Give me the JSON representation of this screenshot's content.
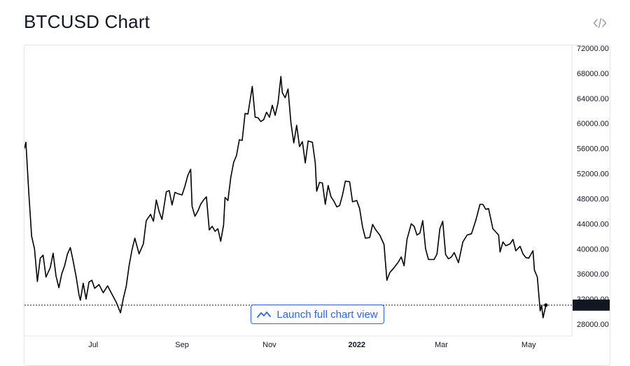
{
  "header": {
    "title": "BTCUSD Chart"
  },
  "toolbar": {
    "embed_icon": "code-embed-icon",
    "launch_label": "Launch full chart view",
    "launch_icon": "chart-line-icon"
  },
  "colors": {
    "line": "#000000",
    "accent": "#2962ff",
    "price_tag_bg": "#131722",
    "grid_border": "#e0e3eb"
  },
  "chart_data": {
    "type": "line",
    "title": "BTCUSD Chart",
    "symbol": "BTCUSD",
    "last_price": "31027.40",
    "y_ticks": [
      "72000.00",
      "68000.00",
      "64000.00",
      "60000.00",
      "56000.00",
      "52000.00",
      "48000.00",
      "44000.00",
      "40000.00",
      "36000.00",
      "32000.00",
      "28000.00"
    ],
    "ylim": [
      28000,
      72000
    ],
    "x_ticks": [
      {
        "label": "Jul",
        "x": "2021-07-01"
      },
      {
        "label": "Sep",
        "x": "2021-09-01"
      },
      {
        "label": "Nov",
        "x": "2021-11-01"
      },
      {
        "label": "2022",
        "x": "2022-01-01"
      },
      {
        "label": "Mar",
        "x": "2022-03-01"
      },
      {
        "label": "May",
        "x": "2022-05-01"
      }
    ],
    "xlim": [
      "2021-05-14",
      "2022-05-16"
    ],
    "grid": false,
    "series": [
      {
        "points": [
          [
            "2021-05-14",
            56000
          ],
          [
            "2021-05-15",
            57000
          ],
          [
            "2021-05-17",
            49000
          ],
          [
            "2021-05-19",
            42000
          ],
          [
            "2021-05-21",
            40000
          ],
          [
            "2021-05-23",
            34800
          ],
          [
            "2021-05-25",
            38500
          ],
          [
            "2021-05-27",
            39000
          ],
          [
            "2021-05-29",
            35500
          ],
          [
            "2021-06-01",
            37000
          ],
          [
            "2021-06-03",
            39300
          ],
          [
            "2021-06-05",
            35700
          ],
          [
            "2021-06-07",
            33800
          ],
          [
            "2021-06-09",
            36000
          ],
          [
            "2021-06-11",
            37300
          ],
          [
            "2021-06-13",
            39200
          ],
          [
            "2021-06-15",
            40200
          ],
          [
            "2021-06-17",
            38000
          ],
          [
            "2021-06-19",
            35600
          ],
          [
            "2021-06-21",
            32700
          ],
          [
            "2021-06-22",
            31800
          ],
          [
            "2021-06-24",
            34500
          ],
          [
            "2021-06-26",
            32000
          ],
          [
            "2021-06-28",
            34700
          ],
          [
            "2021-06-30",
            35000
          ],
          [
            "2021-07-02",
            33700
          ],
          [
            "2021-07-05",
            34300
          ],
          [
            "2021-07-08",
            33000
          ],
          [
            "2021-07-11",
            34100
          ],
          [
            "2021-07-14",
            32800
          ],
          [
            "2021-07-17",
            31500
          ],
          [
            "2021-07-20",
            29800
          ],
          [
            "2021-07-22",
            32100
          ],
          [
            "2021-07-24",
            34000
          ],
          [
            "2021-07-26",
            37300
          ],
          [
            "2021-07-28",
            39800
          ],
          [
            "2021-07-30",
            41700
          ],
          [
            "2021-08-02",
            39200
          ],
          [
            "2021-08-05",
            40800
          ],
          [
            "2021-08-07",
            44500
          ],
          [
            "2021-08-10",
            45500
          ],
          [
            "2021-08-12",
            44400
          ],
          [
            "2021-08-14",
            47800
          ],
          [
            "2021-08-16",
            45900
          ],
          [
            "2021-08-18",
            44700
          ],
          [
            "2021-08-21",
            49100
          ],
          [
            "2021-08-23",
            49300
          ],
          [
            "2021-08-25",
            47000
          ],
          [
            "2021-08-27",
            49000
          ],
          [
            "2021-08-29",
            48800
          ],
          [
            "2021-09-01",
            48600
          ],
          [
            "2021-09-03",
            50000
          ],
          [
            "2021-09-05",
            51700
          ],
          [
            "2021-09-07",
            52700
          ],
          [
            "2021-09-08",
            46800
          ],
          [
            "2021-09-10",
            45200
          ],
          [
            "2021-09-12",
            46000
          ],
          [
            "2021-09-14",
            47100
          ],
          [
            "2021-09-16",
            47800
          ],
          [
            "2021-09-18",
            48300
          ],
          [
            "2021-09-20",
            43000
          ],
          [
            "2021-09-22",
            43600
          ],
          [
            "2021-09-24",
            42800
          ],
          [
            "2021-09-26",
            43200
          ],
          [
            "2021-09-28",
            41200
          ],
          [
            "2021-09-30",
            43800
          ],
          [
            "2021-10-01",
            48200
          ],
          [
            "2021-10-03",
            47700
          ],
          [
            "2021-10-05",
            51400
          ],
          [
            "2021-10-07",
            53800
          ],
          [
            "2021-10-09",
            54900
          ],
          [
            "2021-10-11",
            57400
          ],
          [
            "2021-10-13",
            57300
          ],
          [
            "2021-10-15",
            61600
          ],
          [
            "2021-10-17",
            61500
          ],
          [
            "2021-10-20",
            65900
          ],
          [
            "2021-10-22",
            61000
          ],
          [
            "2021-10-24",
            60900
          ],
          [
            "2021-10-26",
            60300
          ],
          [
            "2021-10-28",
            60600
          ],
          [
            "2021-10-30",
            61800
          ],
          [
            "2021-11-01",
            61000
          ],
          [
            "2021-11-03",
            62900
          ],
          [
            "2021-11-05",
            61300
          ],
          [
            "2021-11-07",
            63300
          ],
          [
            "2021-11-09",
            67500
          ],
          [
            "2021-11-10",
            64900
          ],
          [
            "2021-11-12",
            64100
          ],
          [
            "2021-11-14",
            65500
          ],
          [
            "2021-11-16",
            60100
          ],
          [
            "2021-11-18",
            56900
          ],
          [
            "2021-11-20",
            59700
          ],
          [
            "2021-11-22",
            56300
          ],
          [
            "2021-11-24",
            57100
          ],
          [
            "2021-11-26",
            53700
          ],
          [
            "2021-11-28",
            57200
          ],
          [
            "2021-12-01",
            57000
          ],
          [
            "2021-12-03",
            53700
          ],
          [
            "2021-12-04",
            49200
          ],
          [
            "2021-12-06",
            50600
          ],
          [
            "2021-12-08",
            50500
          ],
          [
            "2021-12-10",
            47100
          ],
          [
            "2021-12-12",
            50100
          ],
          [
            "2021-12-14",
            48300
          ],
          [
            "2021-12-16",
            47600
          ],
          [
            "2021-12-18",
            46700
          ],
          [
            "2021-12-20",
            46900
          ],
          [
            "2021-12-22",
            48600
          ],
          [
            "2021-12-24",
            50800
          ],
          [
            "2021-12-27",
            50700
          ],
          [
            "2021-12-29",
            47500
          ],
          [
            "2022-01-01",
            47700
          ],
          [
            "2022-01-03",
            46400
          ],
          [
            "2022-01-05",
            43500
          ],
          [
            "2022-01-07",
            41700
          ],
          [
            "2022-01-10",
            41800
          ],
          [
            "2022-01-12",
            43900
          ],
          [
            "2022-01-14",
            43100
          ],
          [
            "2022-01-17",
            42200
          ],
          [
            "2022-01-20",
            40700
          ],
          [
            "2022-01-22",
            35000
          ],
          [
            "2022-01-24",
            36200
          ],
          [
            "2022-01-27",
            37000
          ],
          [
            "2022-01-30",
            37900
          ],
          [
            "2022-02-01",
            38700
          ],
          [
            "2022-02-03",
            37300
          ],
          [
            "2022-02-05",
            41500
          ],
          [
            "2022-02-08",
            44000
          ],
          [
            "2022-02-10",
            43600
          ],
          [
            "2022-02-12",
            42200
          ],
          [
            "2022-02-14",
            42500
          ],
          [
            "2022-02-16",
            44500
          ],
          [
            "2022-02-18",
            40000
          ],
          [
            "2022-02-20",
            38300
          ],
          [
            "2022-02-22",
            38300
          ],
          [
            "2022-02-24",
            38300
          ],
          [
            "2022-02-26",
            39200
          ],
          [
            "2022-02-28",
            43200
          ],
          [
            "2022-03-02",
            44400
          ],
          [
            "2022-03-04",
            39100
          ],
          [
            "2022-03-06",
            38400
          ],
          [
            "2022-03-08",
            38700
          ],
          [
            "2022-03-10",
            39400
          ],
          [
            "2022-03-13",
            37800
          ],
          [
            "2022-03-16",
            41100
          ],
          [
            "2022-03-19",
            42200
          ],
          [
            "2022-03-22",
            42400
          ],
          [
            "2022-03-25",
            44500
          ],
          [
            "2022-03-28",
            47100
          ],
          [
            "2022-03-30",
            47100
          ],
          [
            "2022-04-01",
            46300
          ],
          [
            "2022-04-03",
            46400
          ],
          [
            "2022-04-06",
            43200
          ],
          [
            "2022-04-08",
            42700
          ],
          [
            "2022-04-10",
            42200
          ],
          [
            "2022-04-11",
            39500
          ],
          [
            "2022-04-13",
            41100
          ],
          [
            "2022-04-15",
            40500
          ],
          [
            "2022-04-18",
            40800
          ],
          [
            "2022-04-20",
            41500
          ],
          [
            "2022-04-22",
            39700
          ],
          [
            "2022-04-25",
            40400
          ],
          [
            "2022-04-27",
            39200
          ],
          [
            "2022-04-29",
            38600
          ],
          [
            "2022-05-01",
            38500
          ],
          [
            "2022-05-04",
            39700
          ],
          [
            "2022-05-05",
            36600
          ],
          [
            "2022-05-07",
            35500
          ],
          [
            "2022-05-09",
            30100
          ],
          [
            "2022-05-10",
            31000
          ],
          [
            "2022-05-11",
            29000
          ],
          [
            "2022-05-12",
            30000
          ],
          [
            "2022-05-13",
            31027.4
          ]
        ]
      }
    ]
  }
}
